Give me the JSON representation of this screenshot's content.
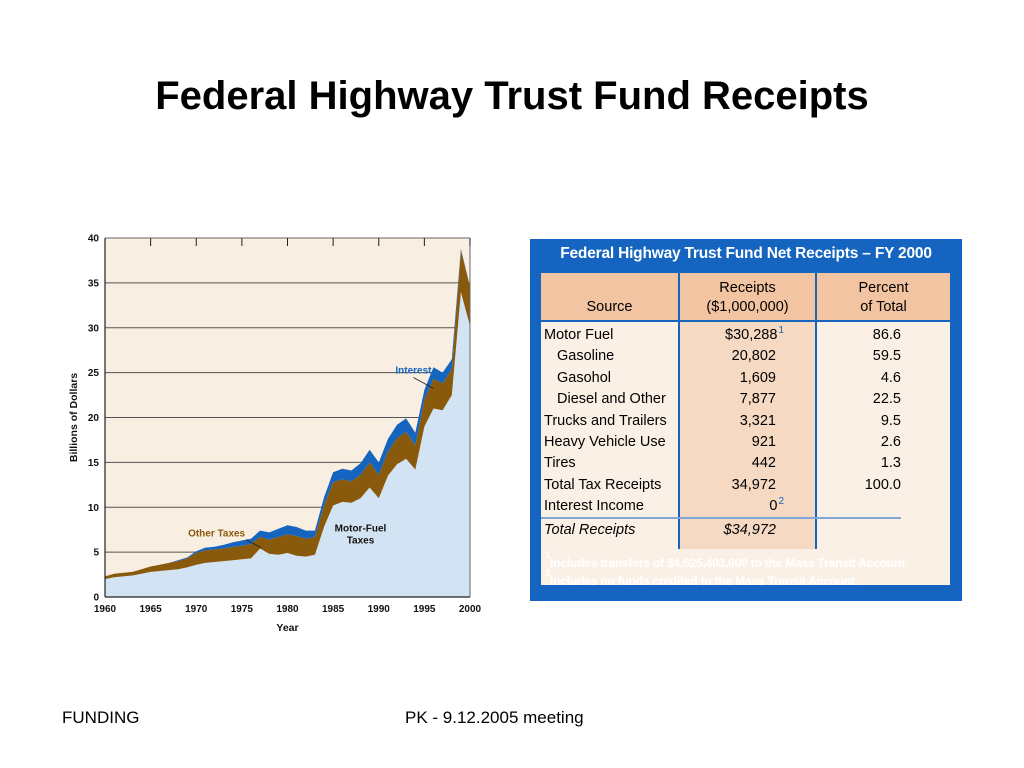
{
  "slide": {
    "title": "Federal Highway Trust Fund Receipts",
    "footer_left": "FUNDING",
    "footer_middle": "PK -  9.12.2005 meeting"
  },
  "colors": {
    "motor_fuel": "#d2e4f3",
    "other_taxes": "#8a5a0c",
    "interest": "#1565c0",
    "plot_bg": "#f8eee1",
    "table_frame": "#1565c0",
    "table_header": "#f2c4a1"
  },
  "chart_data": [
    {
      "type": "area",
      "stacked": true,
      "title": "",
      "xlabel": "Year",
      "ylabel": "Billions of Dollars",
      "xlim": [
        1960,
        2000
      ],
      "ylim": [
        0,
        40
      ],
      "x_ticks": [
        1960,
        1965,
        1970,
        1975,
        1980,
        1985,
        1990,
        1995,
        2000
      ],
      "y_ticks": [
        0,
        5,
        10,
        15,
        20,
        25,
        30,
        35,
        40
      ],
      "grid": "horizontal",
      "x": [
        1960,
        1961,
        1962,
        1963,
        1964,
        1965,
        1966,
        1967,
        1968,
        1969,
        1970,
        1971,
        1972,
        1973,
        1974,
        1975,
        1976,
        1977,
        1978,
        1979,
        1980,
        1981,
        1982,
        1983,
        1984,
        1985,
        1986,
        1987,
        1988,
        1989,
        1990,
        1991,
        1992,
        1993,
        1994,
        1995,
        1996,
        1997,
        1998,
        1999,
        2000
      ],
      "series": [
        {
          "name": "Motor-Fuel Taxes",
          "values": [
            2.0,
            2.2,
            2.3,
            2.4,
            2.6,
            2.8,
            2.9,
            3.0,
            3.1,
            3.3,
            3.6,
            3.8,
            3.9,
            4.0,
            4.1,
            4.2,
            4.3,
            5.4,
            4.8,
            4.7,
            4.9,
            4.6,
            4.5,
            4.7,
            7.8,
            10.2,
            10.6,
            10.5,
            11.0,
            12.2,
            11.0,
            13.5,
            14.8,
            15.4,
            14.2,
            19.0,
            21.0,
            20.8,
            22.5,
            34.0,
            30.2
          ]
        },
        {
          "name": "Other Taxes",
          "values": [
            0.3,
            0.4,
            0.4,
            0.4,
            0.5,
            0.6,
            0.7,
            0.8,
            0.9,
            1.0,
            1.3,
            1.4,
            1.4,
            1.4,
            1.5,
            1.5,
            1.6,
            1.3,
            1.6,
            2.0,
            2.1,
            2.2,
            2.0,
            2.0,
            2.4,
            2.6,
            2.5,
            2.4,
            2.6,
            2.8,
            2.6,
            2.7,
            2.9,
            3.0,
            2.7,
            3.0,
            3.3,
            3.0,
            2.9,
            4.6,
            4.4
          ]
        },
        {
          "name": "Interest",
          "values": [
            0.0,
            0.0,
            0.0,
            0.0,
            0.0,
            0.0,
            0.0,
            0.0,
            0.1,
            0.1,
            0.2,
            0.3,
            0.3,
            0.4,
            0.5,
            0.6,
            0.6,
            0.7,
            0.8,
            0.9,
            1.0,
            1.0,
            0.9,
            0.7,
            0.9,
            1.1,
            1.2,
            1.2,
            1.3,
            1.4,
            1.4,
            1.4,
            1.5,
            1.5,
            1.4,
            1.1,
            1.3,
            1.2,
            1.1,
            0.2,
            0.0
          ]
        }
      ],
      "annotations": [
        {
          "label": "Interest",
          "year": 1996,
          "value": 21
        },
        {
          "label": "Other Taxes",
          "year": 1977,
          "value": 6.5
        },
        {
          "label_lines": [
            "Motor-Fuel",
            "Taxes"
          ],
          "year": 1988,
          "value": 7.3
        }
      ]
    },
    {
      "type": "table",
      "title": "Federal Highway Trust Fund Net Receipts – FY 2000",
      "columns": [
        {
          "lines": [
            "",
            "Source"
          ]
        },
        {
          "lines": [
            "Receipts",
            "($1,000,000)"
          ]
        },
        {
          "lines": [
            "Percent",
            "of Total"
          ]
        }
      ],
      "rows": [
        {
          "source": "Motor Fuel",
          "receipts": "$30,288",
          "note": "1",
          "percent": "86.6",
          "indent": false
        },
        {
          "source": "Gasoline",
          "receipts": "20,802",
          "percent": "59.5",
          "indent": true
        },
        {
          "source": "Gasohol",
          "receipts": "1,609",
          "percent": "4.6",
          "indent": true
        },
        {
          "source": "Diesel and Other",
          "receipts": "7,877",
          "percent": "22.5",
          "indent": true
        },
        {
          "source": "Trucks and Trailers",
          "receipts": "3,321",
          "percent": "9.5",
          "indent": false
        },
        {
          "source": "Heavy Vehicle Use",
          "receipts": "921",
          "percent": "2.6",
          "indent": false
        },
        {
          "source": "Tires",
          "receipts": "442",
          "percent": "1.3",
          "indent": false
        },
        {
          "source": "Total Tax Receipts",
          "receipts": "34,972",
          "percent": "100.0",
          "indent": false
        },
        {
          "source": "Interest Income",
          "receipts": "0",
          "note": "2",
          "percent": "",
          "indent": false
        }
      ],
      "total": {
        "source": "Total Receipts",
        "receipts": "$34,972"
      },
      "footnotes": [
        {
          "mark": "1",
          "text": "Includes transfers of $4,625,403,000 to the Mass Transit Account."
        },
        {
          "mark": "2",
          "text": "Includes no funds credited to the Mass Transit Account."
        }
      ]
    }
  ]
}
